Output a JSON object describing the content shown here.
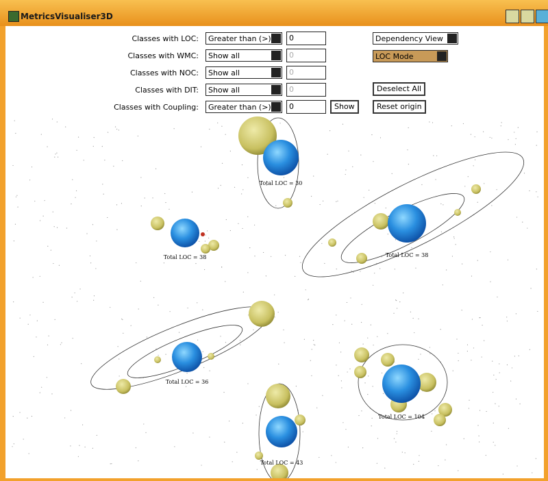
{
  "window": {
    "title": "MetricsVisualiser3D"
  },
  "filters": [
    {
      "label": "Classes with LOC:",
      "mode": "Greater than (>)",
      "value": "0"
    },
    {
      "label": "Classes with WMC:",
      "mode": "Show all",
      "value": "0"
    },
    {
      "label": "Classes with NOC:",
      "mode": "Show all",
      "value": "0"
    },
    {
      "label": "Classes with DIT:",
      "mode": "Show all",
      "value": "0"
    },
    {
      "label": "Classes with Coupling:",
      "mode": "Greater than (>)",
      "value": "0"
    }
  ],
  "show_button": "Show",
  "view_select": "Dependency View",
  "mode_select": "LOC Mode",
  "deselect_button": "Deselect All",
  "reset_button": "Reset origin",
  "systems": [
    {
      "label": "Total LOC = 30"
    },
    {
      "label": "Total LOC = 38"
    },
    {
      "label": "Total LOC = 38"
    },
    {
      "label": "Total LOC = 36"
    },
    {
      "label": "Total LOC = 104"
    },
    {
      "label": "Total LOC = 43"
    }
  ]
}
